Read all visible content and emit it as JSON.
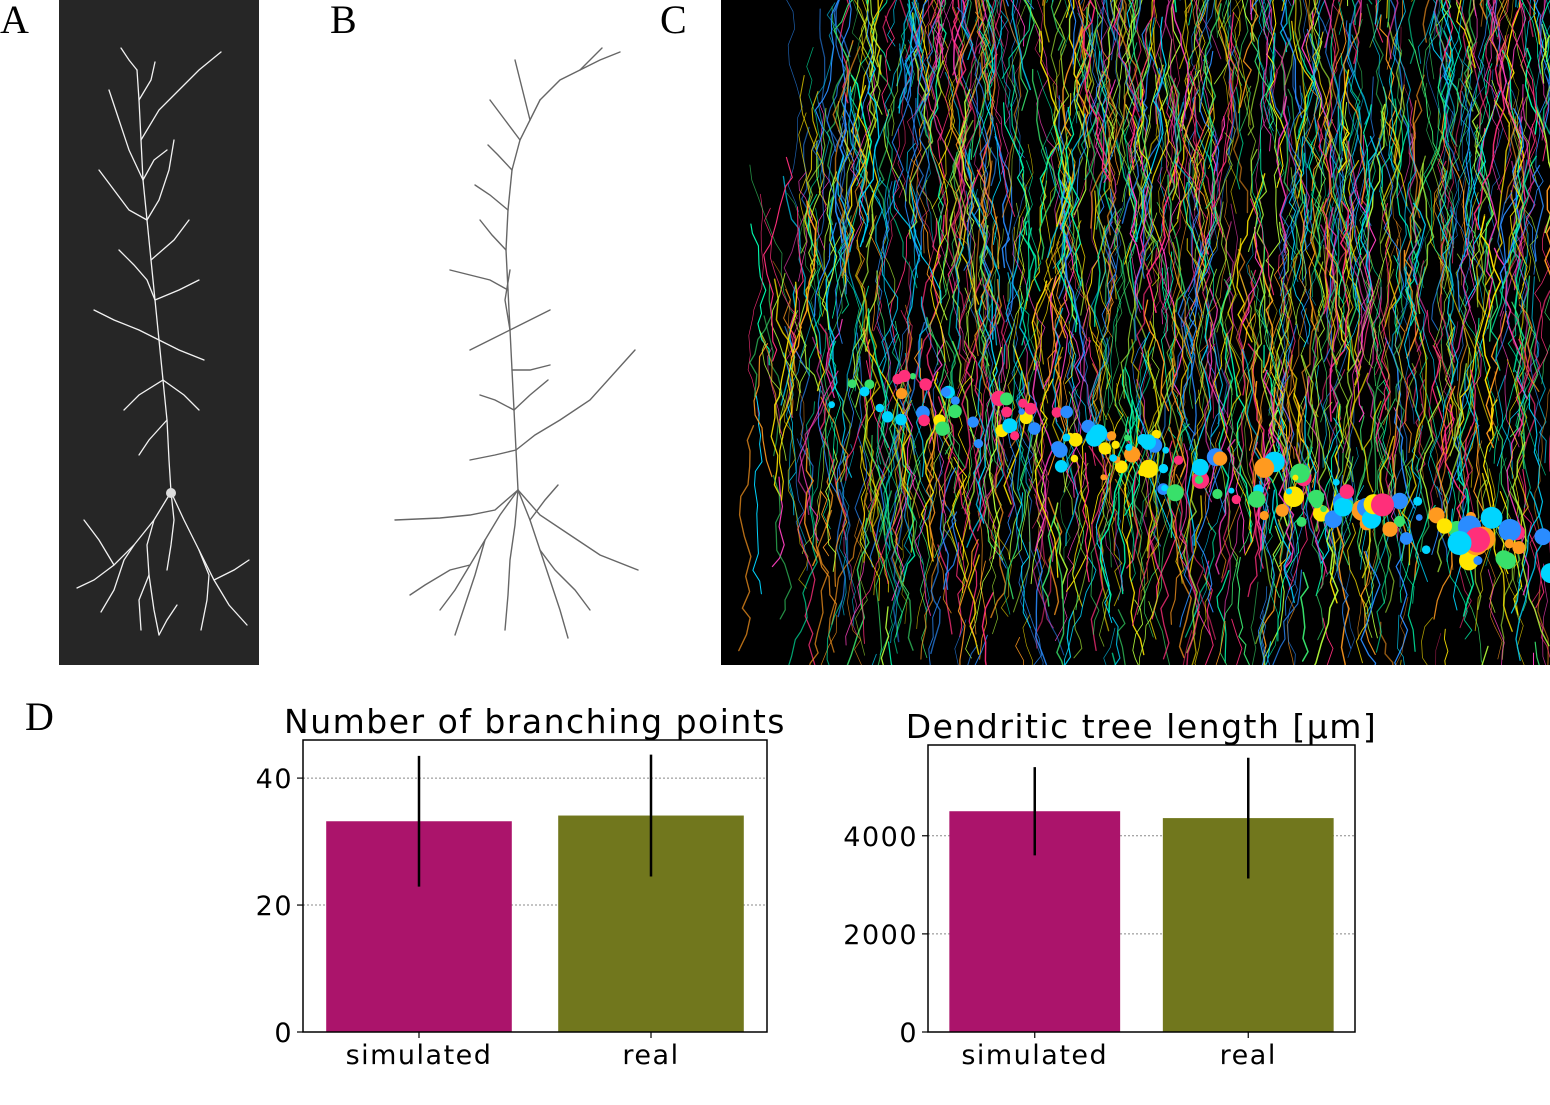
{
  "panels": {
    "a": {
      "letter": "A"
    },
    "b": {
      "letter": "B"
    },
    "c": {
      "letter": "C"
    },
    "d": {
      "letter": "D"
    }
  },
  "chart_data": [
    {
      "type": "bar",
      "title": "Number of branching points",
      "categories": [
        "simulated",
        "real"
      ],
      "values": [
        33.2,
        34.1
      ],
      "errors": [
        10.3,
        9.6
      ],
      "colors": [
        "#ab146b",
        "#71771d"
      ],
      "ylim": [
        0,
        46
      ],
      "yticks": [
        0,
        20,
        40
      ],
      "grid": true
    },
    {
      "type": "bar",
      "title": "Dendritic tree length [µm]",
      "categories": [
        "simulated",
        "real"
      ],
      "values": [
        4500,
        4360
      ],
      "errors": [
        900,
        1230
      ],
      "colors": [
        "#ab146b",
        "#71771d"
      ],
      "ylim": [
        0,
        5850
      ],
      "yticks": [
        0,
        2000,
        4000
      ],
      "grid": true
    }
  ]
}
